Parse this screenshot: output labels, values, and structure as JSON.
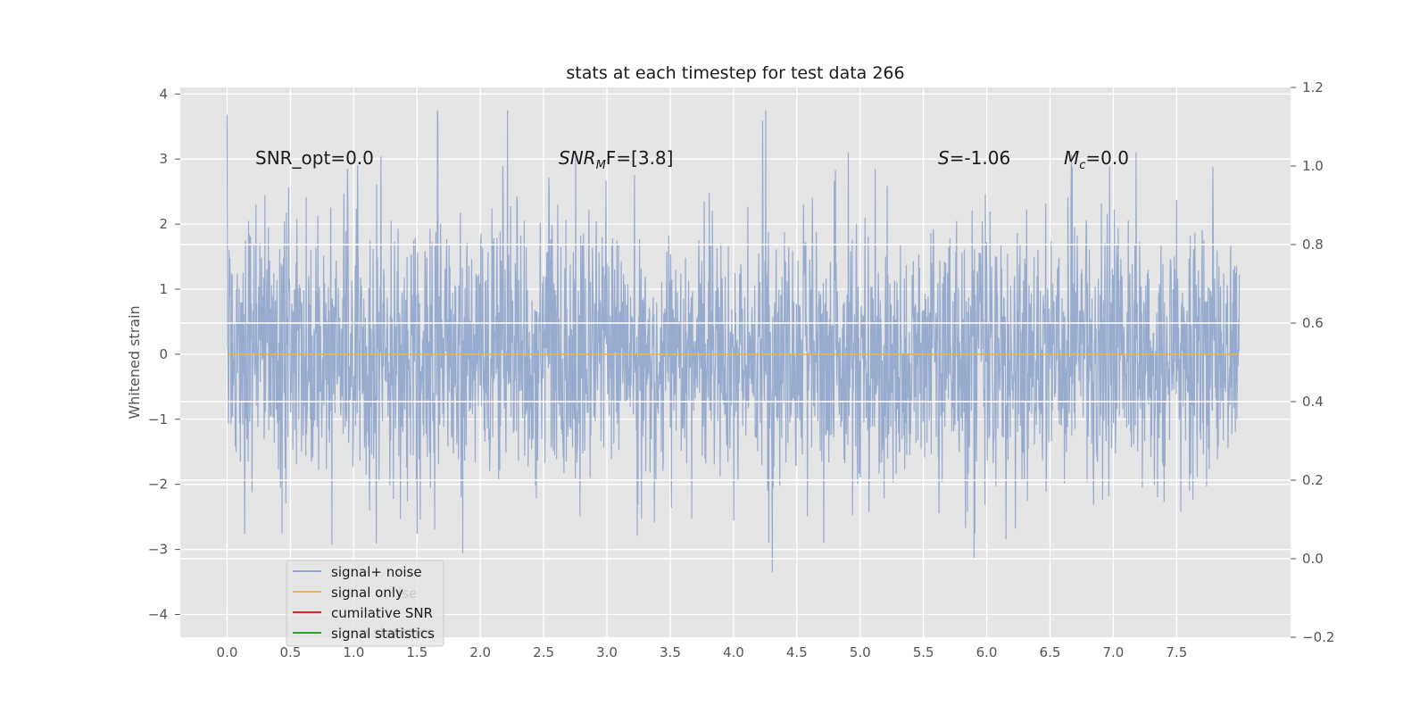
{
  "chart_data": {
    "type": "line",
    "title": "stats at each timestep for test data 266",
    "xlabel": "",
    "ylabel": "Whitened strain",
    "xlim": [
      -0.37,
      8.4
    ],
    "ylim": [
      -4.35,
      4.1
    ],
    "y2lim": [
      -0.2,
      1.2
    ],
    "xticks": [
      "0.0",
      "0.5",
      "1.0",
      "1.5",
      "2.0",
      "2.5",
      "3.0",
      "3.5",
      "4.0",
      "4.5",
      "5.0",
      "5.5",
      "6.0",
      "6.5",
      "7.0",
      "7.5"
    ],
    "yticks": [
      "−4",
      "−3",
      "−2",
      "−1",
      "0",
      "1",
      "2",
      "3",
      "4"
    ],
    "y2ticks": [
      "−0.2",
      "0.0",
      "0.2",
      "0.4",
      "0.6",
      "0.8",
      "1.0",
      "1.2"
    ],
    "grid": true,
    "legend_position": "lower-left",
    "series": [
      {
        "name": "signal+ noise",
        "color": "#92a8cd",
        "style": "dense noise trace, amplitude approx. ±4, x from 0.0 to 8.0"
      },
      {
        "name": "signal only",
        "color": "#f0b24a",
        "values_constant": 0.0
      },
      {
        "name": "cumilative SNR",
        "color": "#d62728"
      },
      {
        "name": "signal statistics",
        "color": "#2ca02c"
      }
    ],
    "hlines_right_axis": [
      0.8,
      0.6,
      0.4,
      0.2,
      0.0
    ],
    "annotations": [
      {
        "name": "snr-opt",
        "text": "SNR_opt=0.0"
      },
      {
        "name": "snr-mf",
        "base": "SNR",
        "sub": "M",
        "rest": "F=[3.8]"
      },
      {
        "name": "s-stat",
        "base": "S",
        "rest": "=-1.06"
      },
      {
        "name": "mc",
        "base": "M",
        "sub": "c",
        "rest": "=0.0"
      }
    ],
    "legend_ghost_labels": [
      "ise",
      "n statistics"
    ]
  },
  "colors": {
    "axes_bg": "#e5e5e5",
    "grid": "#ffffff",
    "tick_text": "#555555",
    "title_text": "#1a1a1a"
  }
}
